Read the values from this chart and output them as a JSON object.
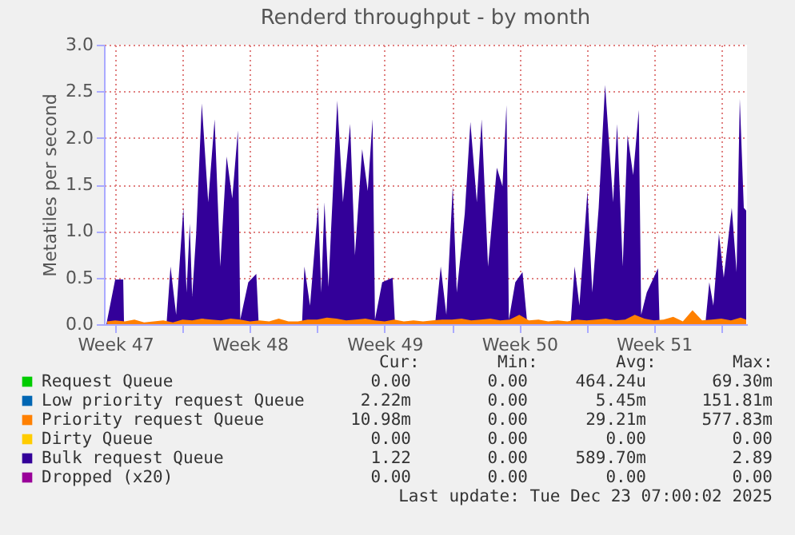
{
  "chart_data": {
    "type": "area",
    "title": "Renderd throughput - by month",
    "ylabel": "Metatiles per second",
    "xlim": [
      "2025-11-19T22:00",
      "2025-12-23T08:00"
    ],
    "ylim": [
      0,
      3.0
    ],
    "xticks": [
      {
        "value": "2025-11-20T12:00",
        "label": "Week 47"
      },
      {
        "value": "2025-11-24T00:00",
        "label": null
      },
      {
        "value": "2025-11-27T12:00",
        "label": "Week 48"
      },
      {
        "value": "2025-12-01T00:00",
        "label": null
      },
      {
        "value": "2025-12-04T12:00",
        "label": "Week 49"
      },
      {
        "value": "2025-12-08T00:00",
        "label": null
      },
      {
        "value": "2025-12-11T12:00",
        "label": "Week 50"
      },
      {
        "value": "2025-12-15T00:00",
        "label": null
      },
      {
        "value": "2025-12-18T12:00",
        "label": "Week 51"
      },
      {
        "value": "2025-12-22T00:00",
        "label": null
      }
    ],
    "yticks": [
      {
        "value": 0,
        "label": "0.0"
      },
      {
        "value": 0.5,
        "label": "0.5"
      },
      {
        "value": 1,
        "label": "1.0"
      },
      {
        "value": 1.5,
        "label": "1.5"
      },
      {
        "value": 2,
        "label": "2.0"
      },
      {
        "value": 2.5,
        "label": "2.5"
      },
      {
        "value": 3,
        "label": "3.0"
      }
    ],
    "grid": true,
    "legend": "bottom",
    "series": [
      {
        "name": "Request Queue",
        "color": "#00cc00"
      },
      {
        "name": "Low priority request Queue",
        "color": "#0066b3"
      },
      {
        "name": "Priority request Queue",
        "color": "#ff8000",
        "x": [
          "2025-11-20T02:00",
          "2025-11-20T12:00",
          "2025-11-21T00:00",
          "2025-11-21T12:00",
          "2025-11-22T00:00",
          "2025-11-22T12:00",
          "2025-11-23T00:00",
          "2025-11-23T12:00",
          "2025-11-24T00:00",
          "2025-11-24T12:00",
          "2025-11-25T00:00",
          "2025-11-25T12:00",
          "2025-11-26T00:00",
          "2025-11-26T12:00",
          "2025-11-27T00:00",
          "2025-11-27T12:00",
          "2025-11-28T00:00",
          "2025-11-28T12:00",
          "2025-11-29T00:00",
          "2025-11-29T12:00",
          "2025-11-30T00:00",
          "2025-11-30T12:00",
          "2025-12-01T00:00",
          "2025-12-01T12:00",
          "2025-12-02T00:00",
          "2025-12-02T12:00",
          "2025-12-03T00:00",
          "2025-12-03T12:00",
          "2025-12-04T00:00",
          "2025-12-04T12:00",
          "2025-12-05T00:00",
          "2025-12-05T12:00",
          "2025-12-06T00:00",
          "2025-12-06T12:00",
          "2025-12-07T00:00",
          "2025-12-07T12:00",
          "2025-12-08T00:00",
          "2025-12-08T12:00",
          "2025-12-09T00:00",
          "2025-12-09T12:00",
          "2025-12-10T00:00",
          "2025-12-10T12:00",
          "2025-12-11T00:00",
          "2025-12-11T12:00",
          "2025-12-12T00:00",
          "2025-12-12T12:00",
          "2025-12-13T00:00",
          "2025-12-13T12:00",
          "2025-12-14T00:00",
          "2025-12-14T12:00",
          "2025-12-15T00:00",
          "2025-12-15T12:00",
          "2025-12-16T00:00",
          "2025-12-16T12:00",
          "2025-12-17T00:00",
          "2025-12-17T12:00",
          "2025-12-18T00:00",
          "2025-12-18T12:00",
          "2025-12-19T00:00",
          "2025-12-19T12:00",
          "2025-12-20T00:00",
          "2025-12-20T12:00",
          "2025-12-21T00:00",
          "2025-12-21T12:00",
          "2025-12-22T00:00",
          "2025-12-22T12:00",
          "2025-12-23T00:00",
          "2025-12-23T07:00"
        ],
        "values": [
          0.03,
          0.04,
          0.03,
          0.05,
          0.02,
          0.03,
          0.04,
          0.02,
          0.05,
          0.04,
          0.06,
          0.05,
          0.04,
          0.06,
          0.05,
          0.03,
          0.04,
          0.03,
          0.06,
          0.03,
          0.03,
          0.05,
          0.05,
          0.07,
          0.06,
          0.04,
          0.05,
          0.06,
          0.04,
          0.03,
          0.05,
          0.03,
          0.04,
          0.03,
          0.04,
          0.05,
          0.05,
          0.06,
          0.04,
          0.05,
          0.06,
          0.04,
          0.05,
          0.1,
          0.04,
          0.05,
          0.03,
          0.04,
          0.03,
          0.05,
          0.04,
          0.05,
          0.06,
          0.04,
          0.05,
          0.1,
          0.06,
          0.04,
          0.05,
          0.08,
          0.03,
          0.15,
          0.04,
          0.05,
          0.06,
          0.04,
          0.07,
          0.05
        ]
      },
      {
        "name": "Dirty Queue",
        "color": "#ffcc00"
      },
      {
        "name": "Bulk request Queue",
        "color": "#330099",
        "x": [
          "2025-11-20T01:00",
          "2025-11-20T12:00",
          "2025-11-20T22:00",
          "2025-11-20T23:00",
          "2025-11-23T04:00",
          "2025-11-23T09:00",
          "2025-11-23T16:00",
          "2025-11-24T01:00",
          "2025-11-24T05:00",
          "2025-11-24T09:00",
          "2025-11-24T12:00",
          "2025-11-24T17:00",
          "2025-11-25T00:00",
          "2025-11-25T08:00",
          "2025-11-25T16:00",
          "2025-11-25T23:00",
          "2025-11-26T07:00",
          "2025-11-26T14:00",
          "2025-11-26T21:00",
          "2025-11-27T00:00",
          "2025-11-27T10:00",
          "2025-11-27T20:00",
          "2025-11-27T23:00",
          "2025-11-30T05:00",
          "2025-11-30T08:00",
          "2025-11-30T15:00",
          "2025-12-01T01:00",
          "2025-12-01T05:00",
          "2025-12-01T09:00",
          "2025-12-01T14:00",
          "2025-12-01T17:00",
          "2025-12-02T01:00",
          "2025-12-02T08:00",
          "2025-12-02T17:00",
          "2025-12-02T23:00",
          "2025-12-03T08:00",
          "2025-12-03T15:00",
          "2025-12-03T21:00",
          "2025-12-04T00:00",
          "2025-12-04T09:00",
          "2025-12-04T22:00",
          "2025-12-05T01:00",
          "2025-12-07T03:00",
          "2025-12-07T10:00",
          "2025-12-07T17:00",
          "2025-12-08T01:00",
          "2025-12-08T06:00",
          "2025-12-08T16:00",
          "2025-12-08T23:00",
          "2025-12-09T07:00",
          "2025-12-09T13:00",
          "2025-12-09T21:00",
          "2025-12-10T08:00",
          "2025-12-10T15:00",
          "2025-12-10T20:00",
          "2025-12-10T23:00",
          "2025-12-11T07:00",
          "2025-12-11T16:00",
          "2025-12-11T22:00",
          "2025-12-14T04:00",
          "2025-12-14T09:00",
          "2025-12-14T15:00",
          "2025-12-15T01:00",
          "2025-12-15T07:00",
          "2025-12-15T15:00",
          "2025-12-15T23:00",
          "2025-12-16T09:00",
          "2025-12-16T14:00",
          "2025-12-16T21:00",
          "2025-12-17T03:00",
          "2025-12-17T10:00",
          "2025-12-17T17:00",
          "2025-12-17T20:00",
          "2025-12-18T03:00",
          "2025-12-18T17:00",
          "2025-12-18T19:00",
          "2025-12-21T04:00",
          "2025-12-21T09:00",
          "2025-12-21T14:00",
          "2025-12-21T21:00",
          "2025-12-22T03:00",
          "2025-12-22T13:00",
          "2025-12-22T19:00",
          "2025-12-22T23:00",
          "2025-12-23T04:00",
          "2025-12-23T07:00"
        ],
        "values": [
          0,
          0.48,
          0.48,
          0,
          0,
          0.62,
          0.1,
          1.25,
          0.34,
          1.08,
          0.3,
          0.97,
          2.37,
          1.31,
          2.2,
          0.62,
          1.8,
          1.35,
          2.08,
          0.05,
          0.45,
          0.54,
          0,
          0,
          0.62,
          0.2,
          1.27,
          0.34,
          1.31,
          0.4,
          0.97,
          2.4,
          1.31,
          2.15,
          0.74,
          1.88,
          1.43,
          2.2,
          0.05,
          0.45,
          0.5,
          0,
          0,
          0.62,
          0.1,
          1.48,
          0.34,
          1.19,
          2.17,
          1.31,
          2.2,
          0.62,
          1.68,
          1.48,
          2.35,
          0.05,
          0.45,
          0.56,
          0,
          0,
          0.62,
          0.2,
          1.43,
          0.34,
          1.25,
          2.57,
          1.31,
          2.15,
          0.62,
          2.03,
          1.6,
          2.3,
          0.1,
          0.34,
          0.6,
          0,
          0,
          0.45,
          0.2,
          0.97,
          0.5,
          1.25,
          0.56,
          2.42,
          1.25,
          1.22
        ]
      },
      {
        "name": "Dropped (x20)",
        "color": "#990099"
      }
    ],
    "annotations": [
      "Cur:",
      "Min:",
      "Avg:",
      "Max:",
      "0.00",
      "0.00",
      "464.24u",
      "69.30m",
      "2.22m",
      "0.00",
      "5.45m",
      "151.81m",
      "10.98m",
      "0.00",
      "29.21m",
      "577.83m",
      "0.00",
      "0.00",
      "0.00",
      "0.00",
      "1.22",
      "0.00",
      "589.70m",
      "2.89",
      "0.00",
      "0.00",
      "0.00",
      "0.00",
      "Last update: Tue Dec 23 07:00:02 2025"
    ]
  }
}
